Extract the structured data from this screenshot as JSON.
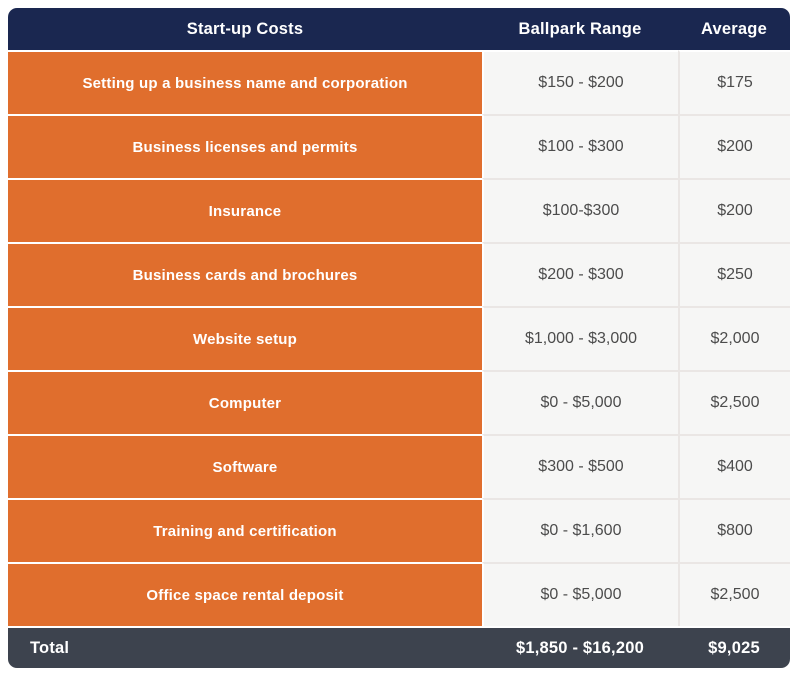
{
  "chart_data": {
    "type": "table",
    "title": "Start-up Costs",
    "columns": [
      "Start-up Costs",
      "Ballpark Range",
      "Average"
    ],
    "rows": [
      [
        "Setting up a business name and corporation",
        "$150 - $200",
        "$175"
      ],
      [
        "Business licenses and permits",
        "$100 - $300",
        "$200"
      ],
      [
        "Insurance",
        "$100-$300",
        "$200"
      ],
      [
        "Business cards and brochures",
        "$200 - $300",
        "$250"
      ],
      [
        "Website setup",
        "$1,000 - $3,000",
        "$2,000"
      ],
      [
        "Computer",
        "$0 - $5,000",
        "$2,500"
      ],
      [
        "Software",
        "$300 - $500",
        "$400"
      ],
      [
        "Training and certification",
        "$0 - $1,600",
        "$800"
      ],
      [
        "Office space rental deposit",
        "$0 - $5,000",
        "$2,500"
      ]
    ],
    "footer": [
      "Total",
      "$1,850 - $16,200",
      "$9,025"
    ]
  },
  "colors": {
    "header_bg": "#1a2750",
    "category_bg": "#e06e2d",
    "value_bg": "#f6f6f5",
    "footer_bg": "#3d434e",
    "value_text": "#4c4c4c",
    "separator": "#eae6e4"
  }
}
